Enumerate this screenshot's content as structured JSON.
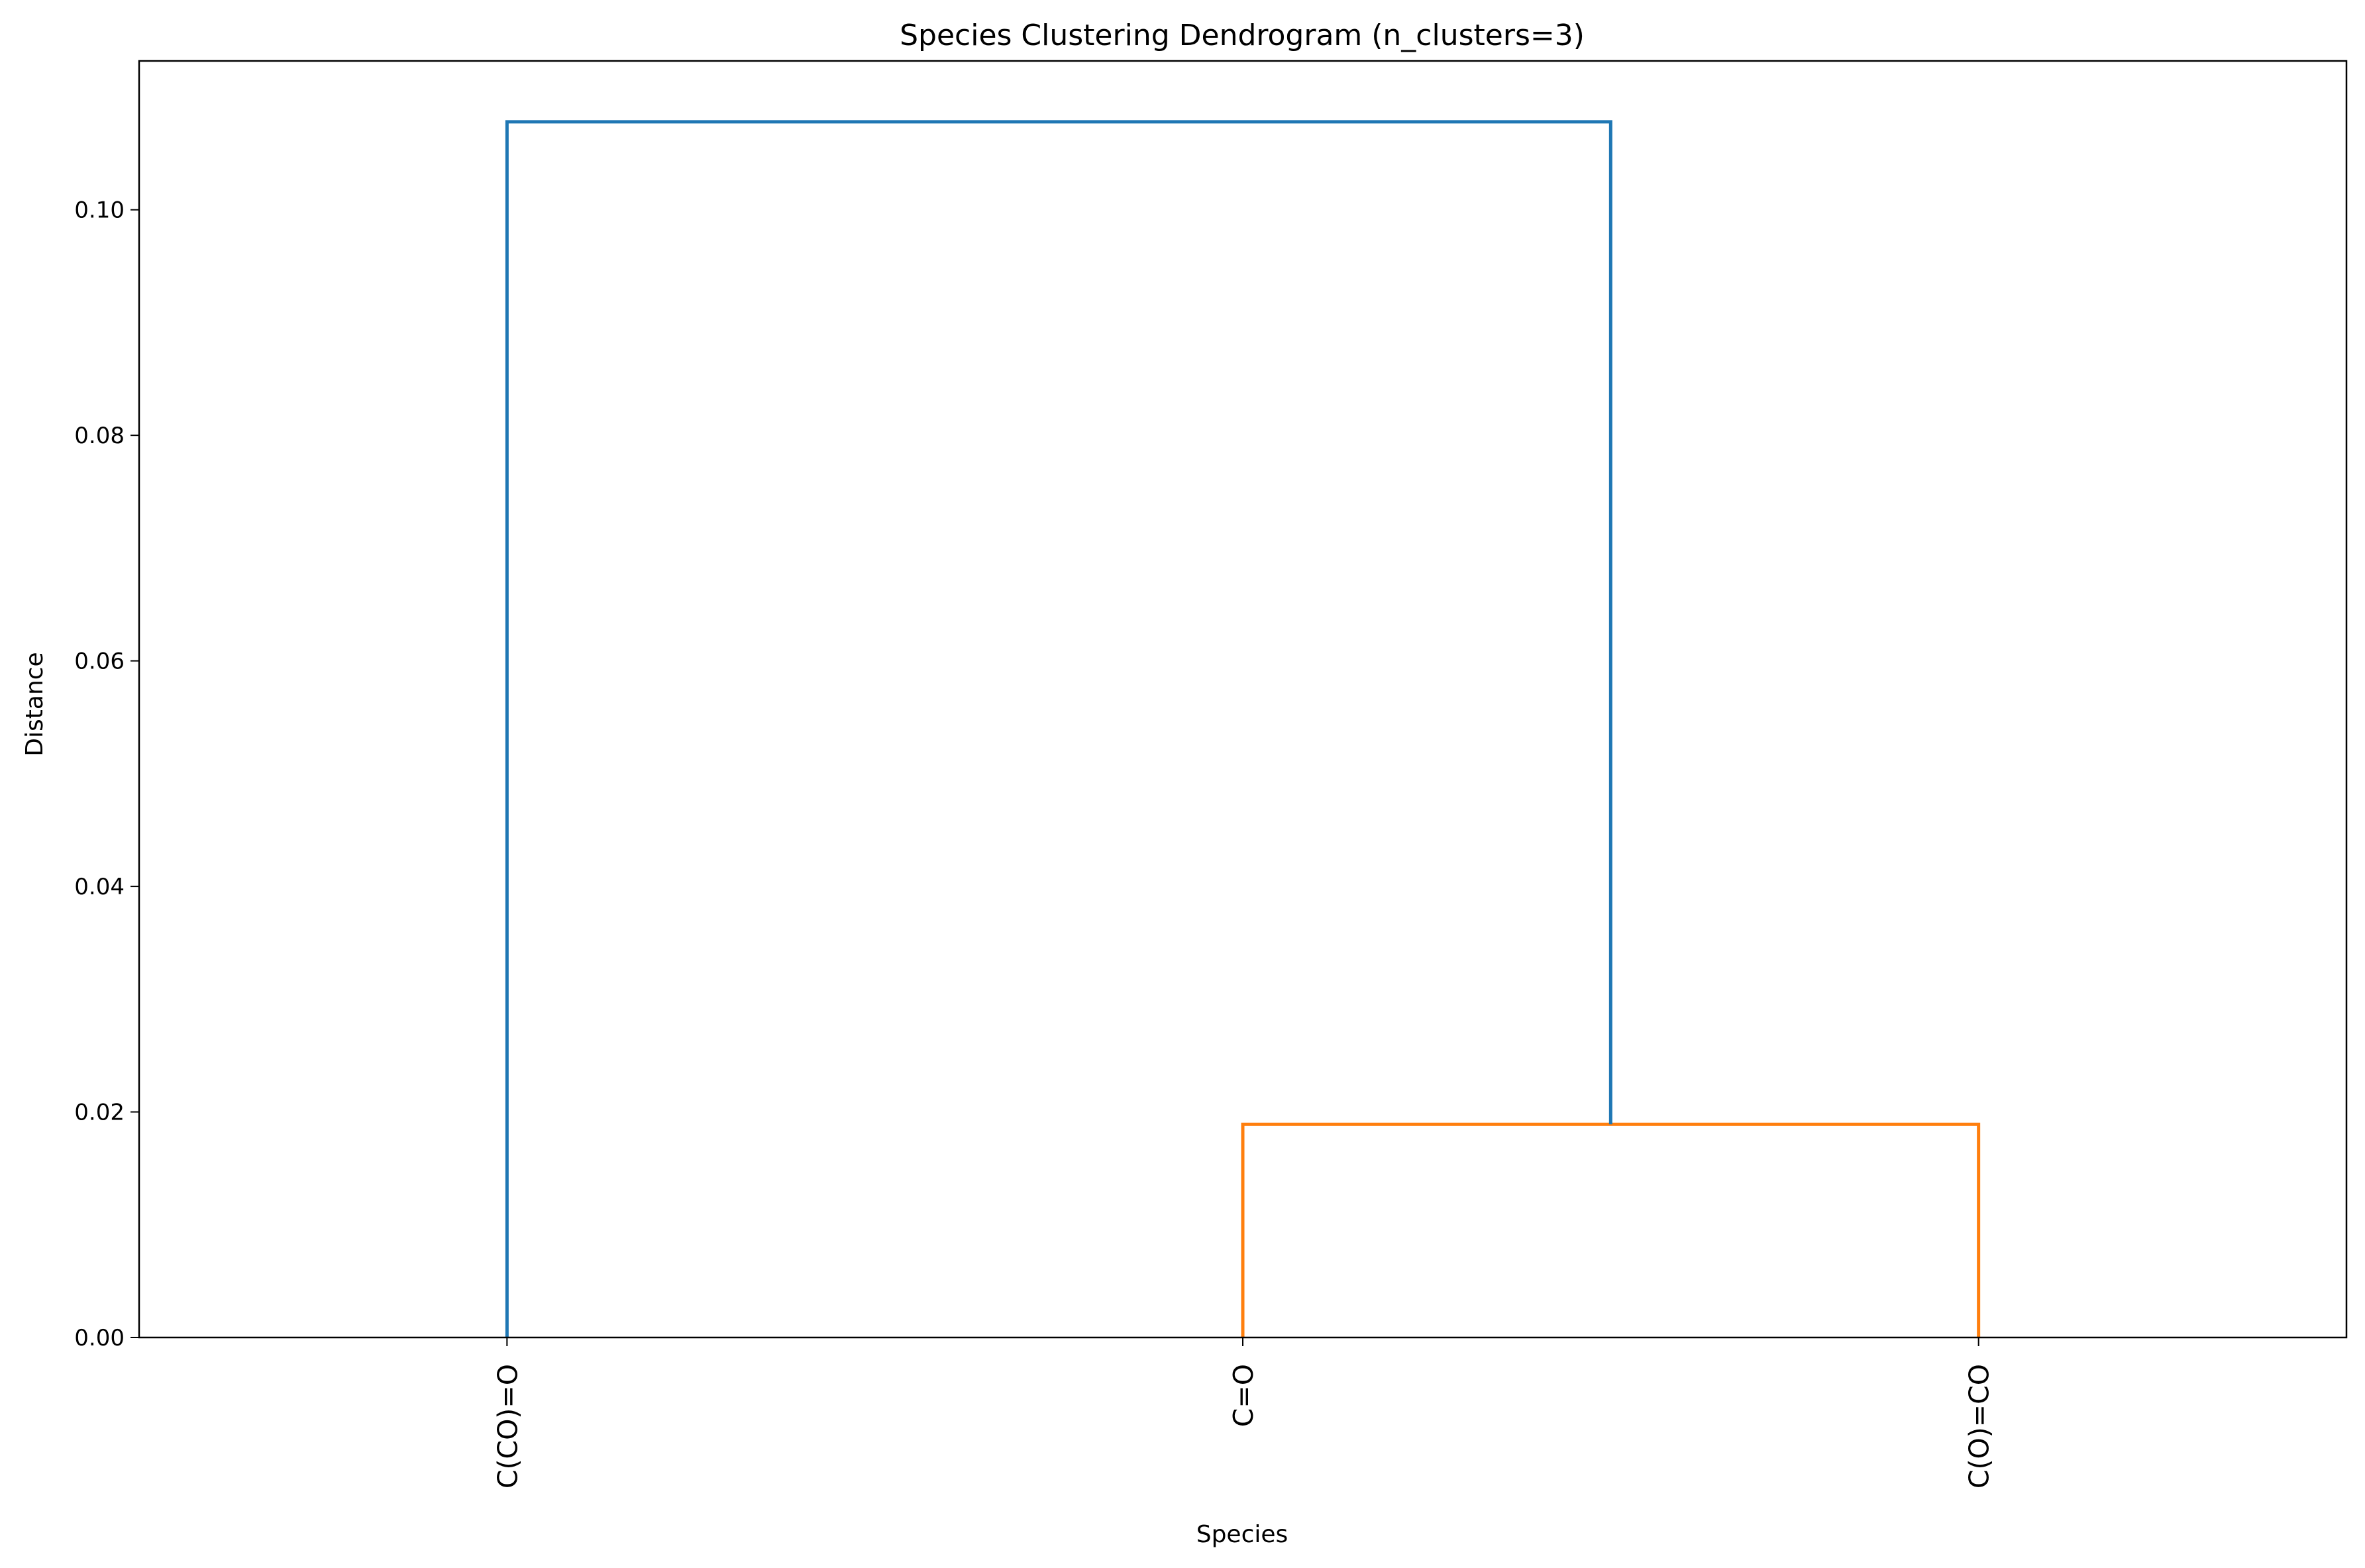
{
  "chart_data": {
    "type": "dendrogram",
    "title": "Species Clustering Dendrogram (n_clusters=3)",
    "xlabel": "Species",
    "ylabel": "Distance",
    "ylim": [
      0,
      0.1132
    ],
    "yticks": [
      0.0,
      0.02,
      0.04,
      0.06,
      0.08,
      0.1
    ],
    "ytick_labels": [
      "0.00",
      "0.02",
      "0.04",
      "0.06",
      "0.08",
      "0.10"
    ],
    "leaves": [
      "C(CO)=O",
      "C=O",
      "C(O)=CO"
    ],
    "links": [
      {
        "left": "C=O",
        "right": "C(O)=CO",
        "height": 0.0189,
        "color": "#ff7f0e"
      },
      {
        "left": "C(CO)=O",
        "right": "cluster(C=O, C(O)=CO)",
        "height": 0.1078,
        "color": "#1f77b4"
      }
    ],
    "grid": false,
    "legend": "none"
  }
}
